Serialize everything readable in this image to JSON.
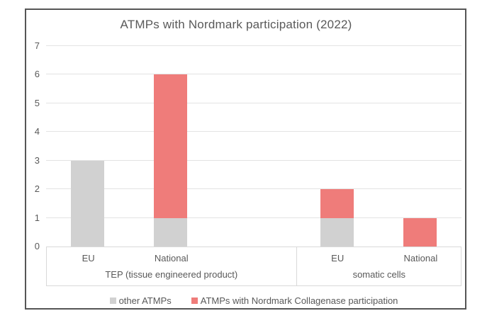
{
  "chart_data": {
    "type": "bar",
    "stacked": true,
    "title": "ATMPs with Nordmark participation (2022)",
    "groups": [
      {
        "label": "TEP (tissue engineered product)",
        "categories": [
          "EU",
          "National"
        ]
      },
      {
        "label": "somatic cells",
        "categories": [
          "EU",
          "National"
        ]
      }
    ],
    "series": [
      {
        "name": "other ATMPs",
        "color": "#d1d1d1",
        "values": [
          3,
          1,
          1,
          0
        ]
      },
      {
        "name": "ATMPs with Nordmark Collagenase participation",
        "color": "#ef7c7a",
        "values": [
          0,
          5,
          1,
          1
        ]
      }
    ],
    "y_ticks": [
      0,
      1,
      2,
      3,
      4,
      5,
      6,
      7
    ],
    "ylim": [
      0,
      7
    ],
    "grid": true,
    "legend_position": "bottom",
    "group_gap_slots": 1
  },
  "style": {
    "text_color": "#595959",
    "gridline_color": "#e3e3e3",
    "axis_box_border_color": "#d9d9d9",
    "frame_border_color": "#555555",
    "series_gray": "#d1d1d1",
    "series_red": "#ef7c7a",
    "background": "#ffffff"
  }
}
